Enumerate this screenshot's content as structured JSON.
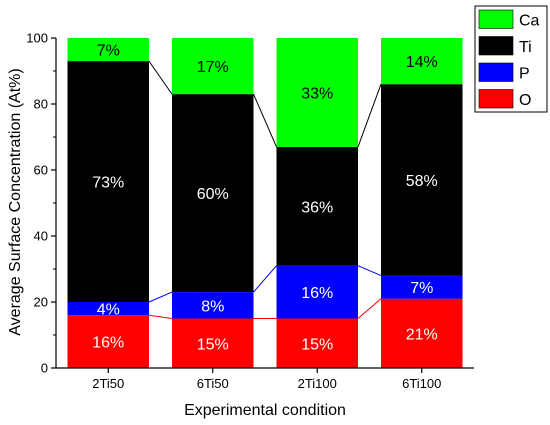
{
  "chart_data": {
    "type": "bar",
    "stacked": true,
    "categories": [
      "2Ti50",
      "6Ti50",
      "2Ti100",
      "6Ti100"
    ],
    "series": [
      {
        "name": "O",
        "color": "#ff0000",
        "values": [
          16,
          15,
          15,
          21
        ],
        "labels": [
          "16%",
          "15%",
          "15%",
          "21%"
        ]
      },
      {
        "name": "P",
        "color": "#0000ff",
        "values": [
          4,
          8,
          16,
          7
        ],
        "labels": [
          "4%",
          "8%",
          "16%",
          "7%"
        ]
      },
      {
        "name": "Ti",
        "color": "#000000",
        "values": [
          73,
          60,
          36,
          58
        ],
        "labels": [
          "73%",
          "60%",
          "36%",
          "58%"
        ]
      },
      {
        "name": "Ca",
        "color": "#00ff00",
        "values": [
          7,
          17,
          33,
          14
        ],
        "labels": [
          "7%",
          "17%",
          "33%",
          "14%"
        ]
      }
    ],
    "xlabel": "Experimental condition",
    "ylabel": "Average Surface Concentration (At%)",
    "ylim": [
      0,
      100
    ],
    "yticks": [
      "0",
      "20",
      "40",
      "60",
      "80",
      "100"
    ],
    "legend_position": "top-right",
    "legend_order": [
      "Ca",
      "Ti",
      "P",
      "O"
    ],
    "connector_lines": true,
    "grid": false
  }
}
